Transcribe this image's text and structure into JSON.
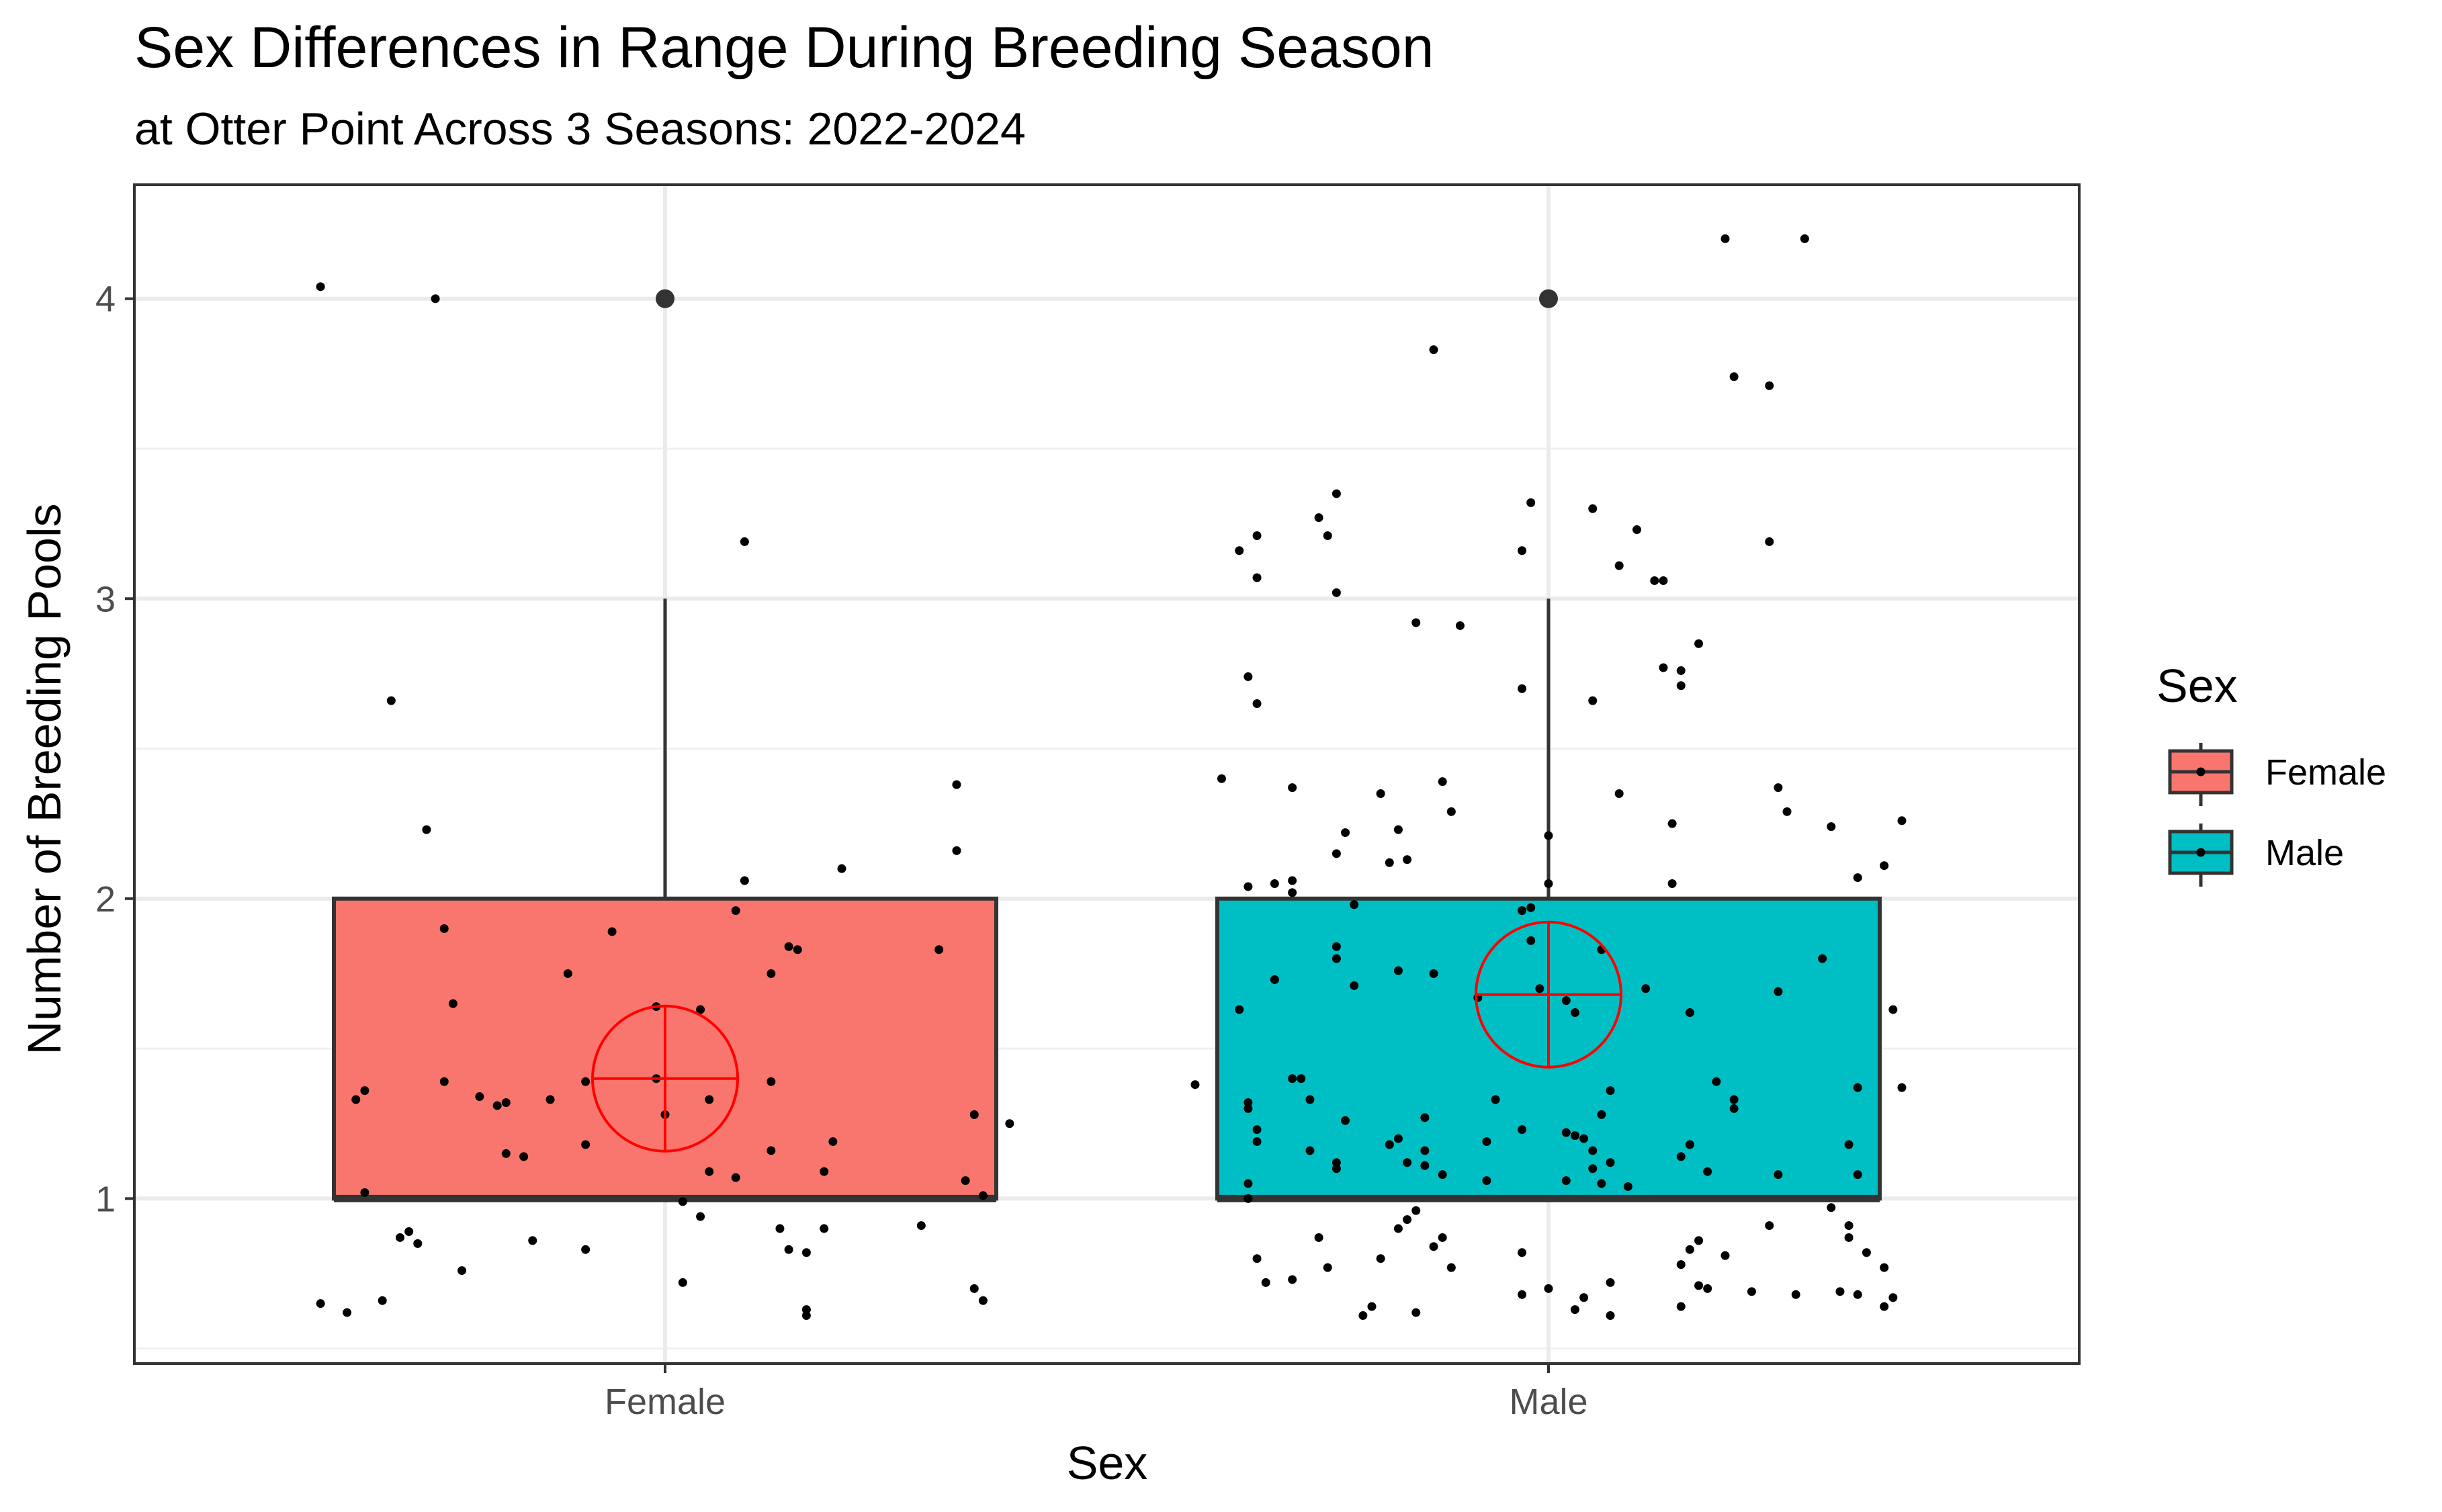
{
  "chart_data": {
    "type": "boxplot",
    "title": "Sex Differences in Range During Breeding Season",
    "subtitle": "at Otter Point Across 3 Seasons: 2022-2024",
    "xlabel": "Sex",
    "ylabel": "Number of Breeding Pools",
    "categories": [
      "Female",
      "Male"
    ],
    "ylim": [
      0.45,
      4.38
    ],
    "y_ticks": [
      1,
      2,
      3,
      4
    ],
    "y_tick_labels": [
      "1",
      "2",
      "3",
      "4"
    ],
    "grid": true,
    "legend": {
      "title": "Sex",
      "position": "right",
      "entries": [
        {
          "label": "Female",
          "color": "#F8766D"
        },
        {
          "label": "Male",
          "color": "#00BFC4"
        }
      ]
    },
    "boxes": [
      {
        "category": "Female",
        "color": "#F8766D",
        "lower_whisker": 1,
        "q1": 1,
        "median": 1,
        "q3": 2,
        "upper_whisker": 3,
        "outliers": [
          4
        ],
        "mean": 1.4
      },
      {
        "category": "Male",
        "color": "#00BFC4",
        "lower_whisker": 1,
        "q1": 1,
        "median": 1,
        "q3": 2,
        "upper_whisker": 3,
        "outliers": [
          4
        ],
        "mean": 1.68
      }
    ],
    "jitter_points": {
      "Female": [
        [
          -0.39,
          4.04
        ],
        [
          -0.26,
          4.0
        ],
        [
          0.09,
          3.19
        ],
        [
          -0.31,
          2.66
        ],
        [
          -0.27,
          2.23
        ],
        [
          0.33,
          2.38
        ],
        [
          0.33,
          2.16
        ],
        [
          0.2,
          2.1
        ],
        [
          0.09,
          2.06
        ],
        [
          0.08,
          1.96
        ],
        [
          -0.25,
          1.9
        ],
        [
          -0.06,
          1.89
        ],
        [
          0.14,
          1.84
        ],
        [
          0.15,
          1.83
        ],
        [
          0.31,
          1.83
        ],
        [
          -0.11,
          1.75
        ],
        [
          0.12,
          1.75
        ],
        [
          -0.24,
          1.65
        ],
        [
          -0.01,
          1.64
        ],
        [
          0.04,
          1.63
        ],
        [
          -0.25,
          1.39
        ],
        [
          -0.09,
          1.39
        ],
        [
          -0.01,
          1.4
        ],
        [
          0.12,
          1.39
        ],
        [
          -0.34,
          1.36
        ],
        [
          -0.35,
          1.33
        ],
        [
          -0.21,
          1.34
        ],
        [
          -0.19,
          1.31
        ],
        [
          -0.18,
          1.32
        ],
        [
          -0.13,
          1.33
        ],
        [
          0.05,
          1.33
        ],
        [
          0.0,
          1.28
        ],
        [
          0.35,
          1.28
        ],
        [
          0.39,
          1.25
        ],
        [
          -0.09,
          1.18
        ],
        [
          0.19,
          1.19
        ],
        [
          -0.18,
          1.15
        ],
        [
          -0.16,
          1.14
        ],
        [
          0.12,
          1.16
        ],
        [
          0.05,
          1.09
        ],
        [
          0.08,
          1.07
        ],
        [
          0.18,
          1.09
        ],
        [
          0.34,
          1.06
        ],
        [
          -0.34,
          1.02
        ],
        [
          0.02,
          0.99
        ],
        [
          0.36,
          1.01
        ],
        [
          0.04,
          0.94
        ],
        [
          0.13,
          0.9
        ],
        [
          0.18,
          0.9
        ],
        [
          0.29,
          0.91
        ],
        [
          -0.29,
          0.89
        ],
        [
          -0.28,
          0.85
        ],
        [
          -0.3,
          0.87
        ],
        [
          -0.15,
          0.86
        ],
        [
          -0.09,
          0.83
        ],
        [
          0.14,
          0.83
        ],
        [
          0.16,
          0.82
        ],
        [
          -0.23,
          0.76
        ],
        [
          0.02,
          0.72
        ],
        [
          0.35,
          0.7
        ],
        [
          -0.39,
          0.65
        ],
        [
          -0.36,
          0.62
        ],
        [
          -0.32,
          0.66
        ],
        [
          0.16,
          0.63
        ],
        [
          0.16,
          0.61
        ],
        [
          0.36,
          0.66
        ]
      ],
      "Male": [
        [
          0.2,
          4.2
        ],
        [
          0.29,
          4.2
        ],
        [
          -0.13,
          3.83
        ],
        [
          0.21,
          3.74
        ],
        [
          0.25,
          3.71
        ],
        [
          -0.24,
          3.35
        ],
        [
          -0.02,
          3.32
        ],
        [
          0.05,
          3.3
        ],
        [
          -0.26,
          3.27
        ],
        [
          0.1,
          3.23
        ],
        [
          -0.33,
          3.21
        ],
        [
          -0.25,
          3.21
        ],
        [
          0.25,
          3.19
        ],
        [
          -0.35,
          3.16
        ],
        [
          -0.03,
          3.16
        ],
        [
          0.08,
          3.11
        ],
        [
          0.12,
          3.06
        ],
        [
          0.13,
          3.06
        ],
        [
          -0.33,
          3.07
        ],
        [
          -0.24,
          3.02
        ],
        [
          -0.15,
          2.92
        ],
        [
          -0.1,
          2.91
        ],
        [
          0.17,
          2.85
        ],
        [
          0.13,
          2.77
        ],
        [
          0.15,
          2.76
        ],
        [
          0.15,
          2.71
        ],
        [
          -0.34,
          2.74
        ],
        [
          -0.33,
          2.65
        ],
        [
          -0.03,
          2.7
        ],
        [
          0.05,
          2.66
        ],
        [
          -0.37,
          2.4
        ],
        [
          -0.12,
          2.39
        ],
        [
          -0.29,
          2.37
        ],
        [
          0.26,
          2.37
        ],
        [
          -0.19,
          2.35
        ],
        [
          0.08,
          2.35
        ],
        [
          -0.11,
          2.29
        ],
        [
          0.27,
          2.29
        ],
        [
          0.32,
          2.24
        ],
        [
          0.4,
          2.26
        ],
        [
          -0.23,
          2.22
        ],
        [
          -0.17,
          2.23
        ],
        [
          0.0,
          2.21
        ],
        [
          0.14,
          2.25
        ],
        [
          -0.24,
          2.15
        ],
        [
          -0.16,
          2.13
        ],
        [
          -0.18,
          2.12
        ],
        [
          0.38,
          2.11
        ],
        [
          -0.34,
          2.04
        ],
        [
          -0.31,
          2.05
        ],
        [
          -0.29,
          2.06
        ],
        [
          -0.29,
          2.02
        ],
        [
          0.0,
          2.05
        ],
        [
          0.14,
          2.05
        ],
        [
          0.35,
          2.07
        ],
        [
          -0.22,
          1.98
        ],
        [
          -0.03,
          1.96
        ],
        [
          -0.02,
          1.97
        ],
        [
          -0.02,
          1.86
        ],
        [
          0.06,
          1.83
        ],
        [
          -0.24,
          1.84
        ],
        [
          -0.24,
          1.8
        ],
        [
          0.31,
          1.8
        ],
        [
          -0.22,
          1.71
        ],
        [
          -0.17,
          1.76
        ],
        [
          -0.13,
          1.75
        ],
        [
          -0.31,
          1.73
        ],
        [
          0.11,
          1.7
        ],
        [
          -0.08,
          1.67
        ],
        [
          -0.01,
          1.7
        ],
        [
          0.02,
          1.66
        ],
        [
          0.03,
          1.62
        ],
        [
          0.26,
          1.69
        ],
        [
          -0.35,
          1.63
        ],
        [
          0.16,
          1.62
        ],
        [
          0.39,
          1.63
        ],
        [
          -0.4,
          1.38
        ],
        [
          -0.29,
          1.4
        ],
        [
          -0.28,
          1.4
        ],
        [
          0.07,
          1.36
        ],
        [
          0.19,
          1.39
        ],
        [
          0.21,
          1.33
        ],
        [
          0.35,
          1.37
        ],
        [
          0.4,
          1.37
        ],
        [
          -0.34,
          1.32
        ],
        [
          -0.34,
          1.3
        ],
        [
          -0.27,
          1.33
        ],
        [
          -0.14,
          1.27
        ],
        [
          -0.23,
          1.26
        ],
        [
          -0.06,
          1.33
        ],
        [
          0.06,
          1.28
        ],
        [
          0.21,
          1.3
        ],
        [
          -0.33,
          1.23
        ],
        [
          -0.33,
          1.19
        ],
        [
          -0.27,
          1.16
        ],
        [
          -0.24,
          1.12
        ],
        [
          -0.24,
          1.1
        ],
        [
          -0.18,
          1.18
        ],
        [
          -0.17,
          1.2
        ],
        [
          -0.16,
          1.12
        ],
        [
          -0.14,
          1.16
        ],
        [
          -0.14,
          1.11
        ],
        [
          -0.12,
          1.08
        ],
        [
          -0.07,
          1.19
        ],
        [
          -0.03,
          1.23
        ],
        [
          0.02,
          1.22
        ],
        [
          0.03,
          1.21
        ],
        [
          0.04,
          1.2
        ],
        [
          0.05,
          1.16
        ],
        [
          0.05,
          1.1
        ],
        [
          0.07,
          1.12
        ],
        [
          0.09,
          1.04
        ],
        [
          0.06,
          1.05
        ],
        [
          0.15,
          1.14
        ],
        [
          0.16,
          1.18
        ],
        [
          0.26,
          1.08
        ],
        [
          0.34,
          1.18
        ],
        [
          0.35,
          1.08
        ],
        [
          -0.34,
          1.05
        ],
        [
          -0.07,
          1.06
        ],
        [
          0.02,
          1.06
        ],
        [
          0.18,
          1.09
        ],
        [
          -0.34,
          1.0
        ],
        [
          -0.15,
          0.96
        ],
        [
          -0.16,
          0.93
        ],
        [
          -0.17,
          0.9
        ],
        [
          -0.13,
          0.84
        ],
        [
          -0.12,
          0.87
        ],
        [
          0.17,
          0.86
        ],
        [
          0.16,
          0.83
        ],
        [
          0.25,
          0.91
        ],
        [
          0.32,
          0.97
        ],
        [
          0.34,
          0.91
        ],
        [
          -0.26,
          0.87
        ],
        [
          0.2,
          0.81
        ],
        [
          0.34,
          0.87
        ],
        [
          -0.33,
          0.8
        ],
        [
          -0.25,
          0.77
        ],
        [
          -0.19,
          0.8
        ],
        [
          -0.11,
          0.77
        ],
        [
          -0.03,
          0.82
        ],
        [
          0.0,
          0.7
        ],
        [
          0.04,
          0.67
        ],
        [
          0.07,
          0.72
        ],
        [
          0.15,
          0.78
        ],
        [
          0.17,
          0.71
        ],
        [
          0.18,
          0.7
        ],
        [
          -0.32,
          0.72
        ],
        [
          -0.29,
          0.73
        ],
        [
          0.23,
          0.69
        ],
        [
          0.36,
          0.82
        ],
        [
          0.38,
          0.77
        ],
        [
          0.35,
          0.68
        ],
        [
          0.38,
          0.64
        ],
        [
          -0.03,
          0.68
        ],
        [
          0.03,
          0.63
        ],
        [
          0.07,
          0.61
        ],
        [
          0.15,
          0.64
        ],
        [
          -0.21,
          0.61
        ],
        [
          -0.2,
          0.64
        ],
        [
          -0.15,
          0.62
        ],
        [
          0.28,
          0.68
        ],
        [
          0.33,
          0.69
        ],
        [
          0.39,
          0.67
        ]
      ]
    }
  }
}
